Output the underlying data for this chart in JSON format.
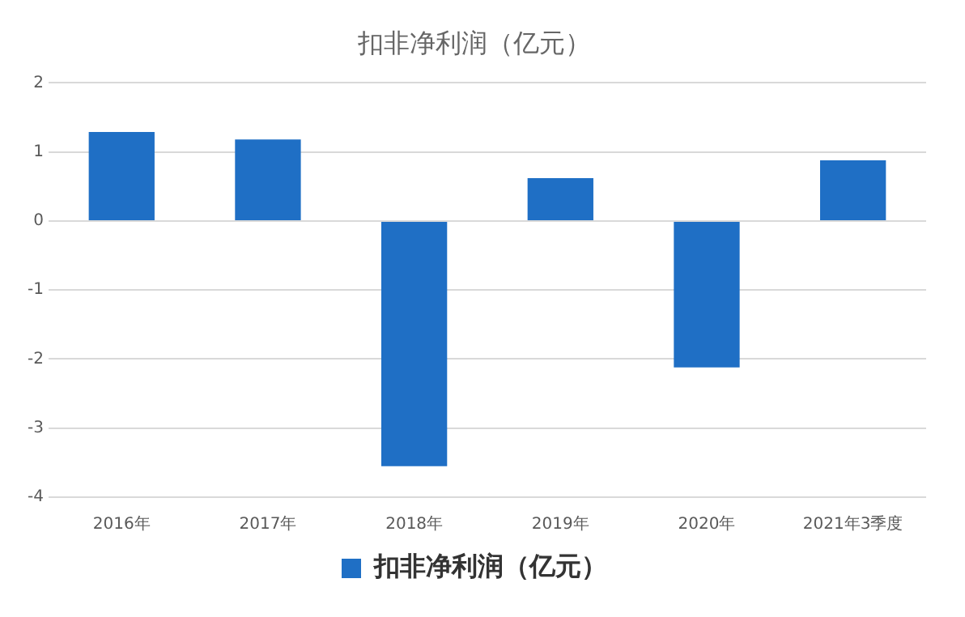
{
  "chart_data": {
    "type": "bar",
    "title": "扣非净利润（亿元）",
    "categories": [
      "2016年",
      "2017年",
      "2018年",
      "2019年",
      "2020年",
      "2021年3季度"
    ],
    "series": [
      {
        "name": "扣非净利润（亿元）",
        "color": "#1f6fc5",
        "values": [
          1.29,
          1.18,
          -3.55,
          0.62,
          -2.12,
          0.88
        ]
      }
    ],
    "ylim": [
      -4,
      2
    ],
    "yticks": [
      -4,
      -3,
      -2,
      -1,
      0,
      1,
      2
    ],
    "grid": "y",
    "legend": "bottom"
  }
}
